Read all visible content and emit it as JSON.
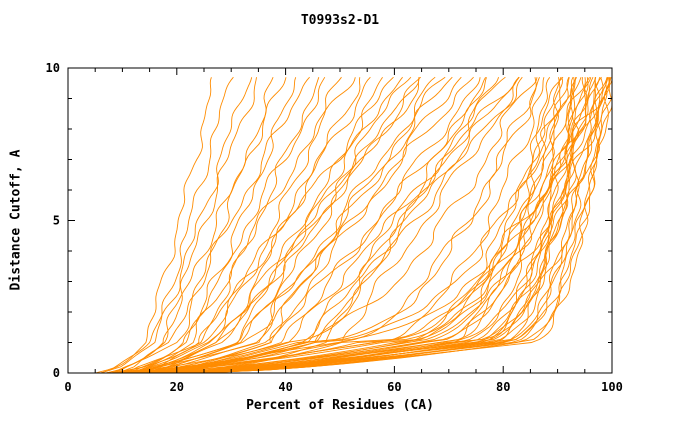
{
  "chart_data": {
    "type": "line",
    "title": "T0993s2-D1",
    "xlabel": "Percent of Residues (CA)",
    "ylabel": "Distance Cutoff, A",
    "xlim": [
      0,
      100
    ],
    "ylim": [
      0,
      10
    ],
    "x_major_ticks": [
      0,
      20,
      40,
      60,
      80,
      100
    ],
    "x_minor_step": 5,
    "y_major_ticks": [
      0,
      5,
      10
    ],
    "y_minor_step": 1,
    "grid": false,
    "legend": "none",
    "line_color": "#ff8c00",
    "axis_color": "#000000",
    "curve_top_y": 9.7,
    "curves_format": [
      "x_at_y0",
      "x_at_y1",
      "x_at_ytop",
      "upper_shape_exponent"
    ],
    "curves": [
      [
        5,
        14,
        27,
        0.9
      ],
      [
        6,
        16,
        30,
        1.0
      ],
      [
        6,
        15,
        33,
        0.85
      ],
      [
        7,
        18,
        35,
        1.1
      ],
      [
        7,
        20,
        38,
        0.95
      ],
      [
        8,
        17,
        40,
        1.0
      ],
      [
        8,
        22,
        42,
        0.9
      ],
      [
        9,
        19,
        44,
        1.05
      ],
      [
        9,
        24,
        46,
        0.9
      ],
      [
        10,
        21,
        48,
        1.0
      ],
      [
        10,
        26,
        50,
        0.85
      ],
      [
        11,
        23,
        52,
        1.1
      ],
      [
        11,
        28,
        54,
        0.95
      ],
      [
        12,
        25,
        56,
        1.0
      ],
      [
        12,
        30,
        58,
        0.9
      ],
      [
        8,
        24,
        60,
        1.0
      ],
      [
        9,
        28,
        62,
        0.9
      ],
      [
        10,
        32,
        64,
        1.05
      ],
      [
        10,
        26,
        66,
        0.95
      ],
      [
        11,
        34,
        68,
        1.0
      ],
      [
        11,
        30,
        70,
        0.85
      ],
      [
        12,
        38,
        72,
        1.1
      ],
      [
        12,
        33,
        74,
        0.95
      ],
      [
        13,
        40,
        76,
        1.0
      ],
      [
        13,
        36,
        78,
        0.9
      ],
      [
        14,
        44,
        80,
        1.05
      ],
      [
        14,
        39,
        82,
        0.95
      ],
      [
        15,
        46,
        84,
        1.0
      ],
      [
        9,
        35,
        65,
        1.2
      ],
      [
        16,
        42,
        79,
        0.8
      ],
      [
        15,
        48,
        83,
        1.15
      ],
      [
        13,
        29,
        61,
        1.0
      ],
      [
        17,
        45,
        77,
        0.9
      ],
      [
        18,
        50,
        84,
        1.0
      ],
      [
        16,
        37,
        69,
        1.1
      ],
      [
        8,
        40,
        85,
        0.55
      ],
      [
        9,
        45,
        86,
        0.45
      ],
      [
        10,
        50,
        87,
        0.6
      ],
      [
        11,
        55,
        88,
        0.5
      ],
      [
        12,
        60,
        89,
        0.4
      ],
      [
        13,
        62,
        90,
        0.55
      ],
      [
        14,
        58,
        90,
        0.35
      ],
      [
        15,
        65,
        91,
        0.5
      ],
      [
        16,
        68,
        91,
        0.45
      ],
      [
        17,
        70,
        92,
        0.6
      ],
      [
        18,
        66,
        92,
        0.4
      ],
      [
        19,
        72,
        93,
        0.5
      ],
      [
        20,
        74,
        93,
        0.35
      ],
      [
        21,
        76,
        94,
        0.55
      ],
      [
        22,
        75,
        94,
        0.45
      ],
      [
        23,
        78,
        95,
        0.5
      ],
      [
        24,
        77,
        95,
        0.4
      ],
      [
        25,
        80,
        96,
        0.6
      ],
      [
        12,
        52,
        96,
        0.35
      ],
      [
        14,
        63,
        97,
        0.5
      ],
      [
        16,
        69,
        97,
        0.45
      ],
      [
        18,
        73,
        98,
        0.55
      ],
      [
        20,
        79,
        98,
        0.4
      ],
      [
        22,
        81,
        98,
        0.5
      ],
      [
        24,
        82,
        99,
        0.35
      ],
      [
        10,
        47,
        99,
        0.45
      ],
      [
        13,
        57,
        99,
        0.55
      ],
      [
        15,
        64,
        100,
        0.5
      ],
      [
        17,
        71,
        100,
        0.4
      ],
      [
        19,
        75,
        100,
        0.6
      ],
      [
        21,
        80,
        100,
        0.45
      ],
      [
        23,
        83,
        100,
        0.5
      ],
      [
        25,
        85,
        100,
        0.55
      ],
      [
        11,
        49,
        95,
        0.35
      ],
      [
        9,
        43,
        93,
        0.4
      ],
      [
        20,
        70,
        96,
        0.3
      ],
      [
        22,
        77,
        97,
        0.35
      ]
    ]
  }
}
